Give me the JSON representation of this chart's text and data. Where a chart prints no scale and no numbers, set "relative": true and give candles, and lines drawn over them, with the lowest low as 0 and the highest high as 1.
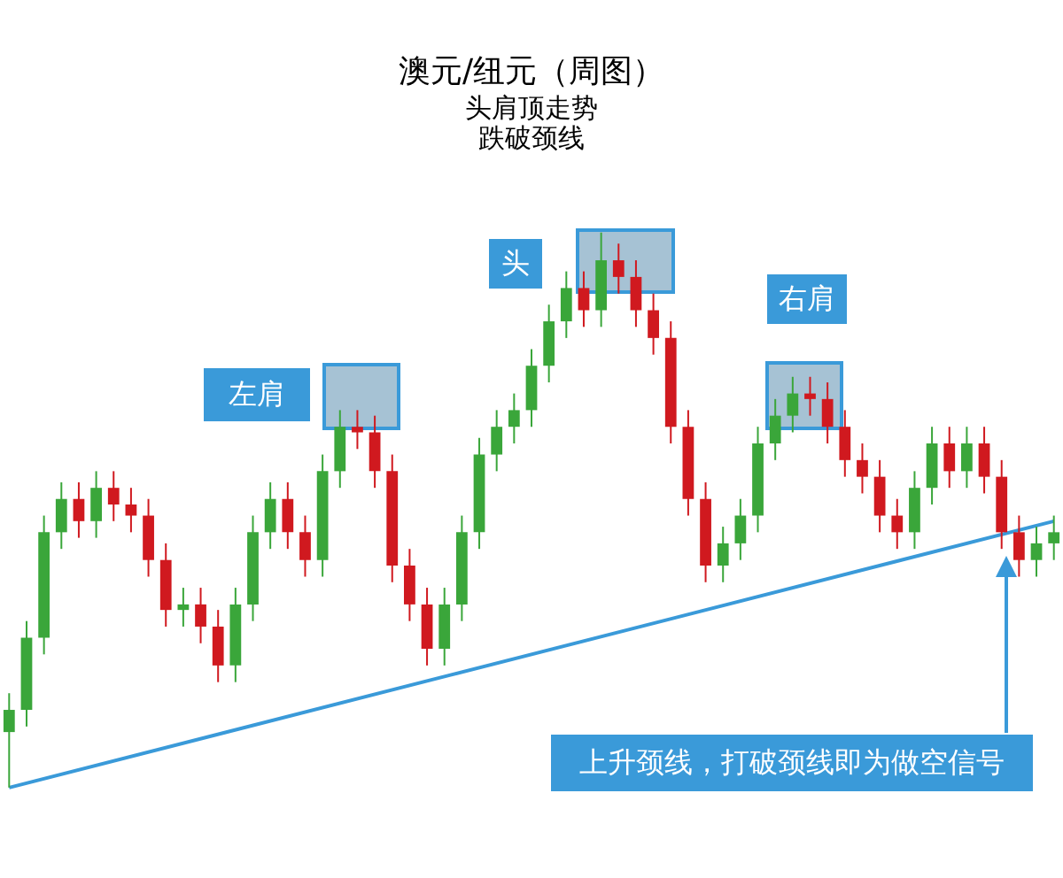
{
  "chart_data": {
    "type": "candlestick",
    "title": "澳元/纽元（周图）",
    "subtitle": "头肩顶走势",
    "relative": true,
    "annotations": [
      "跌破颈线",
      "左肩",
      "头",
      "右肩",
      "上升颈线，打破颈线即为做空信号"
    ],
    "categories": [
      null,
      null,
      null,
      null,
      null,
      null,
      null,
      null,
      null,
      null,
      null,
      null,
      null,
      null,
      null,
      null,
      null,
      null,
      null,
      null,
      null,
      null,
      null,
      null,
      null,
      null,
      null,
      null,
      null,
      null,
      null,
      null,
      null,
      null,
      null,
      null,
      null,
      null,
      null,
      null,
      null,
      null,
      null,
      null,
      null,
      null,
      null,
      null,
      null,
      null,
      null,
      null,
      null,
      null,
      null,
      null,
      null,
      null,
      null,
      null,
      null
    ],
    "series": [
      {
        "ohlc": [
          [
            0.1,
            0.17,
            0,
            0.14
          ],
          [
            0.14,
            0.3,
            0.11,
            0.27
          ],
          [
            0.27,
            0.49,
            0.24,
            0.46
          ],
          [
            0.46,
            0.55,
            0.43,
            0.52
          ],
          [
            0.52,
            0.55,
            0.45,
            0.48
          ],
          [
            0.48,
            0.57,
            0.45,
            0.54
          ],
          [
            0.54,
            0.57,
            0.48,
            0.51
          ],
          [
            0.51,
            0.54,
            0.46,
            0.49
          ],
          [
            0.49,
            0.52,
            0.38,
            0.41
          ],
          [
            0.41,
            0.44,
            0.29,
            0.32
          ],
          [
            0.32,
            0.36,
            0.29,
            0.33
          ],
          [
            0.33,
            0.36,
            0.26,
            0.29
          ],
          [
            0.29,
            0.32,
            0.19,
            0.22
          ],
          [
            0.22,
            0.36,
            0.19,
            0.33
          ],
          [
            0.33,
            0.49,
            0.3,
            0.46
          ],
          [
            0.46,
            0.55,
            0.43,
            0.52
          ],
          [
            0.52,
            0.55,
            0.43,
            0.46
          ],
          [
            0.46,
            0.49,
            0.38,
            0.41
          ],
          [
            0.41,
            0.6,
            0.38,
            0.57
          ],
          [
            0.57,
            0.68,
            0.54,
            0.65
          ],
          [
            0.65,
            0.68,
            0.61,
            0.64
          ],
          [
            0.64,
            0.67,
            0.54,
            0.57
          ],
          [
            0.57,
            0.6,
            0.37,
            0.4
          ],
          [
            0.4,
            0.43,
            0.3,
            0.33
          ],
          [
            0.33,
            0.36,
            0.22,
            0.25
          ],
          [
            0.25,
            0.36,
            0.22,
            0.33
          ],
          [
            0.33,
            0.49,
            0.3,
            0.46
          ],
          [
            0.46,
            0.63,
            0.43,
            0.6
          ],
          [
            0.6,
            0.68,
            0.57,
            0.65
          ],
          [
            0.65,
            0.71,
            0.62,
            0.68
          ],
          [
            0.68,
            0.79,
            0.65,
            0.76
          ],
          [
            0.76,
            0.87,
            0.73,
            0.84
          ],
          [
            0.84,
            0.93,
            0.81,
            0.9
          ],
          [
            0.9,
            0.93,
            0.83,
            0.86
          ],
          [
            0.86,
            1,
            0.83,
            0.95
          ],
          [
            0.95,
            0.98,
            0.89,
            0.92
          ],
          [
            0.92,
            0.95,
            0.83,
            0.86
          ],
          [
            0.86,
            0.89,
            0.78,
            0.81
          ],
          [
            0.81,
            0.84,
            0.62,
            0.65
          ],
          [
            0.65,
            0.68,
            0.49,
            0.52
          ],
          [
            0.52,
            0.55,
            0.37,
            0.4
          ],
          [
            0.4,
            0.47,
            0.37,
            0.44
          ],
          [
            0.44,
            0.52,
            0.41,
            0.49
          ],
          [
            0.49,
            0.65,
            0.46,
            0.62
          ],
          [
            0.62,
            0.7,
            0.59,
            0.67
          ],
          [
            0.67,
            0.74,
            0.64,
            0.71
          ],
          [
            0.71,
            0.74,
            0.67,
            0.7
          ],
          [
            0.7,
            0.73,
            0.62,
            0.65
          ],
          [
            0.65,
            0.68,
            0.56,
            0.59
          ],
          [
            0.59,
            0.62,
            0.53,
            0.56
          ],
          [
            0.56,
            0.59,
            0.46,
            0.49
          ],
          [
            0.49,
            0.52,
            0.43,
            0.46
          ],
          [
            0.46,
            0.57,
            0.43,
            0.54
          ],
          [
            0.54,
            0.65,
            0.51,
            0.62
          ],
          [
            0.62,
            0.65,
            0.54,
            0.57
          ],
          [
            0.57,
            0.65,
            0.54,
            0.62
          ],
          [
            0.62,
            0.65,
            0.53,
            0.56
          ],
          [
            0.56,
            0.59,
            0.43,
            0.46
          ],
          [
            0.46,
            0.49,
            0.38,
            0.41
          ],
          [
            0.41,
            0.47,
            0.38,
            0.44
          ],
          [
            0.44,
            0.49,
            0.41,
            0.46
          ]
        ],
        "colors": [
          "#3aa63a",
          "#3aa63a",
          "#3aa63a",
          "#3aa63a",
          "#d0191f",
          "#3aa63a",
          "#d0191f",
          "#d0191f",
          "#d0191f",
          "#d0191f",
          "#3aa63a",
          "#d0191f",
          "#d0191f",
          "#3aa63a",
          "#3aa63a",
          "#3aa63a",
          "#d0191f",
          "#d0191f",
          "#3aa63a",
          "#3aa63a",
          "#d0191f",
          "#d0191f",
          "#d0191f",
          "#d0191f",
          "#d0191f",
          "#3aa63a",
          "#3aa63a",
          "#3aa63a",
          "#3aa63a",
          "#3aa63a",
          "#3aa63a",
          "#3aa63a",
          "#3aa63a",
          "#d0191f",
          "#3aa63a",
          "#d0191f",
          "#d0191f",
          "#d0191f",
          "#d0191f",
          "#d0191f",
          "#d0191f",
          "#3aa63a",
          "#3aa63a",
          "#3aa63a",
          "#3aa63a",
          "#3aa63a",
          "#d0191f",
          "#d0191f",
          "#d0191f",
          "#d0191f",
          "#d0191f",
          "#d0191f",
          "#3aa63a",
          "#3aa63a",
          "#d0191f",
          "#3aa63a",
          "#d0191f",
          "#d0191f",
          "#d0191f",
          "#3aa63a",
          "#3aa63a"
        ]
      },
      {
        "type": "line",
        "color": "#3a9ad9",
        "values": [
          0,
          null,
          null,
          null,
          null,
          null,
          null,
          null,
          null,
          null,
          null,
          null,
          null,
          null,
          null,
          null,
          null,
          null,
          null,
          null,
          null,
          null,
          null,
          null,
          null,
          null,
          null,
          null,
          null,
          null,
          null,
          null,
          null,
          null,
          null,
          null,
          null,
          null,
          null,
          null,
          null,
          null,
          null,
          null,
          null,
          null,
          null,
          null,
          null,
          null,
          null,
          null,
          null,
          null,
          null,
          null,
          null,
          null,
          null,
          null,
          0.48
        ]
      }
    ]
  }
}
